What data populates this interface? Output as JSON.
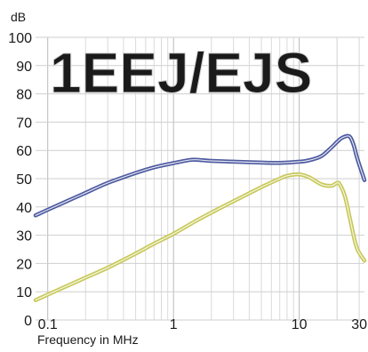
{
  "chart_data": {
    "type": "line",
    "ylabel": "dB",
    "xlabel": "Frequency in MHz",
    "watermark": "1EEJ/EJS",
    "x_scale": "log",
    "xlim": [
      0.08,
      33
    ],
    "ylim": [
      0,
      100
    ],
    "y_ticks": [
      0,
      10,
      20,
      30,
      40,
      50,
      60,
      70,
      80,
      90,
      100
    ],
    "x_ticks": [
      0.1,
      1,
      10,
      30
    ],
    "x_tick_labels": [
      "0.1",
      "1",
      "10",
      "30"
    ],
    "grid": true,
    "series": [
      {
        "color": "#4d5aa0",
        "x": [
          0.08,
          0.1,
          0.15,
          0.2,
          0.3,
          0.5,
          0.7,
          1,
          1.3,
          1.5,
          2,
          3,
          5,
          7,
          10,
          12,
          15,
          18,
          20,
          22,
          25,
          27,
          29,
          33
        ],
        "y": [
          37,
          39,
          42.5,
          45,
          48.5,
          52,
          54,
          55.5,
          56.5,
          56.7,
          56.3,
          56,
          55.7,
          55.6,
          56,
          56.5,
          58,
          61,
          63,
          64.5,
          65,
          62,
          57,
          49.5
        ]
      },
      {
        "color": "#c8c85a",
        "x": [
          0.08,
          0.1,
          0.15,
          0.2,
          0.3,
          0.5,
          0.7,
          1,
          1.5,
          2,
          3,
          5,
          7,
          8,
          10,
          12,
          15,
          18,
          20,
          21,
          23,
          25,
          27,
          29,
          33
        ],
        "y": [
          7,
          9,
          12.5,
          15,
          18.5,
          23.5,
          27,
          30.5,
          35,
          38,
          42,
          47,
          50,
          51,
          51.5,
          50.5,
          48,
          47.5,
          48.5,
          48,
          44,
          37,
          30,
          25,
          21
        ]
      }
    ]
  }
}
